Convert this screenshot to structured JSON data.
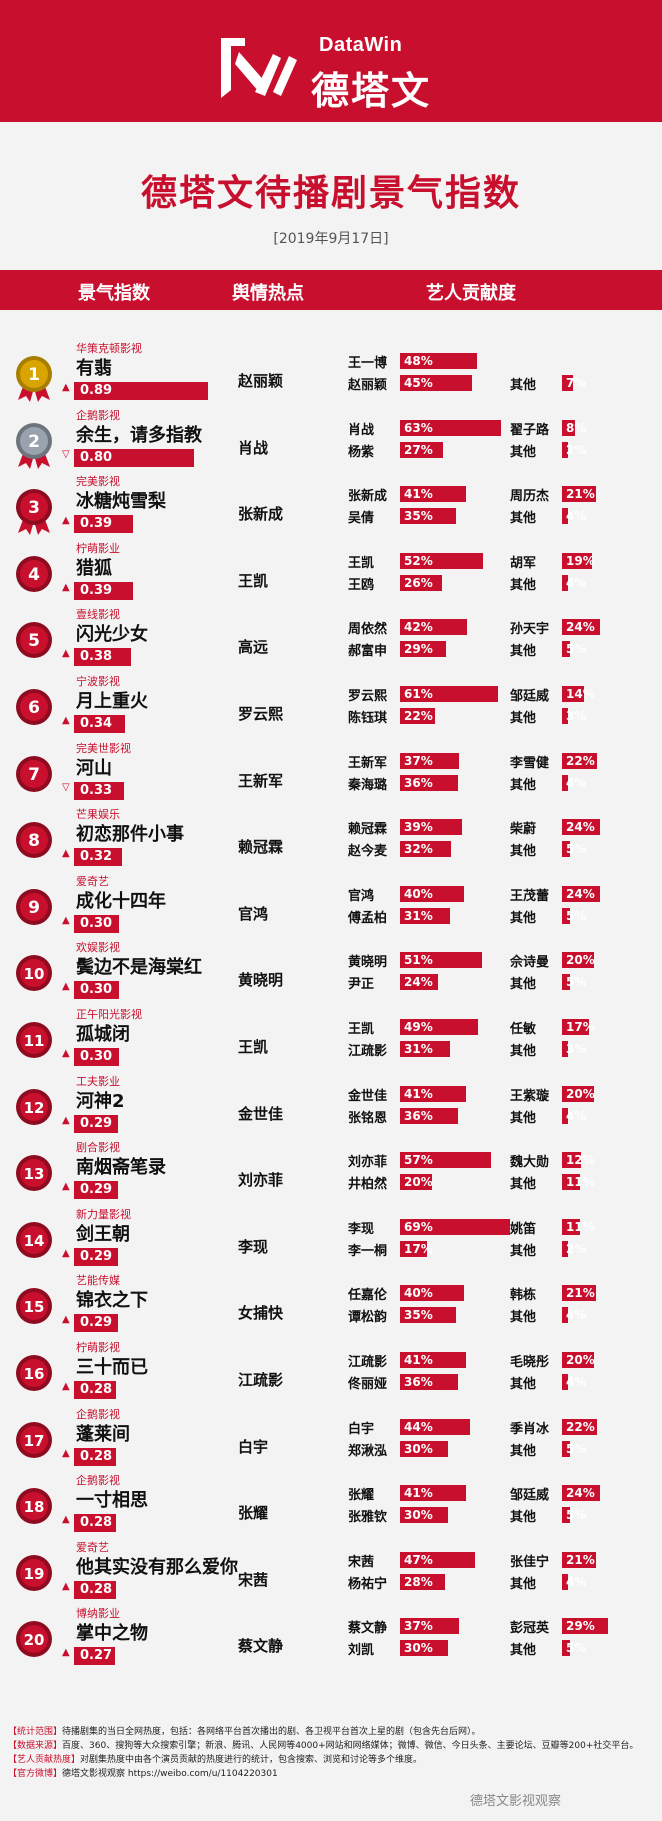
{
  "brand": {
    "en": "DataWin",
    "cn": "德塔文"
  },
  "title": "德塔文待播剧景气指数",
  "date": "[2019年9月17日]",
  "columns": [
    "景气指数",
    "舆情热点",
    "艺人贡献度"
  ],
  "colors": {
    "accent": "#c8102e",
    "gold": "#d9a300",
    "silver": "#9aa2ad"
  },
  "chart_data": {
    "type": "table",
    "rows": [
      {
        "rank": "1",
        "company": "华策克顿影视",
        "show": "有翡",
        "score": "0.89",
        "trend": "up",
        "hot": "赵丽颖",
        "actors": [
          {
            "name": "王一博",
            "pct": "48%"
          },
          {
            "name": "赵丽颖",
            "pct": "45%"
          },
          {
            "name": "",
            "pct": ""
          },
          {
            "name": "其他",
            "pct": "7%"
          }
        ]
      },
      {
        "rank": "2",
        "company": "企鹅影视",
        "show": "余生，请多指教",
        "score": "0.80",
        "trend": "down",
        "hot": "肖战",
        "actors": [
          {
            "name": "肖战",
            "pct": "63%"
          },
          {
            "name": "杨紫",
            "pct": "27%"
          },
          {
            "name": "翟子路",
            "pct": "8%"
          },
          {
            "name": "其他",
            "pct": "2%"
          }
        ]
      },
      {
        "rank": "3",
        "company": "完美影视",
        "show": "冰糖炖雪梨",
        "score": "0.39",
        "trend": "up",
        "hot": "张新成",
        "actors": [
          {
            "name": "张新成",
            "pct": "41%"
          },
          {
            "name": "吴倩",
            "pct": "35%"
          },
          {
            "name": "周历杰",
            "pct": "21%"
          },
          {
            "name": "其他",
            "pct": "4%"
          }
        ]
      },
      {
        "rank": "4",
        "company": "柠萌影业",
        "show": "猎狐",
        "score": "0.39",
        "trend": "up",
        "hot": "王凯",
        "actors": [
          {
            "name": "王凯",
            "pct": "52%"
          },
          {
            "name": "王鸥",
            "pct": "26%"
          },
          {
            "name": "胡军",
            "pct": "19%"
          },
          {
            "name": "其他",
            "pct": "4%"
          }
        ]
      },
      {
        "rank": "5",
        "company": "壹线影视",
        "show": "闪光少女",
        "score": "0.38",
        "trend": "up",
        "hot": "高远",
        "actors": [
          {
            "name": "周依然",
            "pct": "42%"
          },
          {
            "name": "郝富申",
            "pct": "29%"
          },
          {
            "name": "孙天宇",
            "pct": "24%"
          },
          {
            "name": "其他",
            "pct": "5%"
          }
        ]
      },
      {
        "rank": "6",
        "company": "宁波影视",
        "show": "月上重火",
        "score": "0.34",
        "trend": "up",
        "hot": "罗云熙",
        "actors": [
          {
            "name": "罗云熙",
            "pct": "61%"
          },
          {
            "name": "陈钰琪",
            "pct": "22%"
          },
          {
            "name": "邹廷威",
            "pct": "14%"
          },
          {
            "name": "其他",
            "pct": "3%"
          }
        ]
      },
      {
        "rank": "7",
        "company": "完美世影视",
        "show": "河山",
        "score": "0.33",
        "trend": "down",
        "hot": "王新军",
        "actors": [
          {
            "name": "王新军",
            "pct": "37%"
          },
          {
            "name": "秦海璐",
            "pct": "36%"
          },
          {
            "name": "李雪健",
            "pct": "22%"
          },
          {
            "name": "其他",
            "pct": "4%"
          }
        ]
      },
      {
        "rank": "8",
        "company": "芒果娱乐",
        "show": "初恋那件小事",
        "score": "0.32",
        "trend": "up",
        "hot": "赖冠霖",
        "actors": [
          {
            "name": "赖冠霖",
            "pct": "39%"
          },
          {
            "name": "赵今麦",
            "pct": "32%"
          },
          {
            "name": "柴蔚",
            "pct": "24%"
          },
          {
            "name": "其他",
            "pct": "5%"
          }
        ]
      },
      {
        "rank": "9",
        "company": "爱奇艺",
        "show": "成化十四年",
        "score": "0.30",
        "trend": "up",
        "hot": "官鸿",
        "actors": [
          {
            "name": "官鸿",
            "pct": "40%"
          },
          {
            "name": "傅孟柏",
            "pct": "31%"
          },
          {
            "name": "王茂蕾",
            "pct": "24%"
          },
          {
            "name": "其他",
            "pct": "5%"
          }
        ]
      },
      {
        "rank": "10",
        "company": "欢娱影视",
        "show": "鬓边不是海棠红",
        "score": "0.30",
        "trend": "up",
        "hot": "黄晓明",
        "actors": [
          {
            "name": "黄晓明",
            "pct": "51%"
          },
          {
            "name": "尹正",
            "pct": "24%"
          },
          {
            "name": "佘诗曼",
            "pct": "20%"
          },
          {
            "name": "其他",
            "pct": "5%"
          }
        ]
      },
      {
        "rank": "11",
        "company": "正午阳光影视",
        "show": "孤城闭",
        "score": "0.30",
        "trend": "up",
        "hot": "王凯",
        "actors": [
          {
            "name": "王凯",
            "pct": "49%"
          },
          {
            "name": "江疏影",
            "pct": "31%"
          },
          {
            "name": "任敏",
            "pct": "17%"
          },
          {
            "name": "其他",
            "pct": "3%"
          }
        ]
      },
      {
        "rank": "12",
        "company": "工夫影业",
        "show": "河神2",
        "score": "0.29",
        "trend": "up",
        "hot": "金世佳",
        "actors": [
          {
            "name": "金世佳",
            "pct": "41%"
          },
          {
            "name": "张铭恩",
            "pct": "36%"
          },
          {
            "name": "王紫璇",
            "pct": "20%"
          },
          {
            "name": "其他",
            "pct": "4%"
          }
        ]
      },
      {
        "rank": "13",
        "company": "剧合影视",
        "show": "南烟斋笔录",
        "score": "0.29",
        "trend": "up",
        "hot": "刘亦菲",
        "actors": [
          {
            "name": "刘亦菲",
            "pct": "57%"
          },
          {
            "name": "井柏然",
            "pct": "20%"
          },
          {
            "name": "魏大勋",
            "pct": "12%"
          },
          {
            "name": "其他",
            "pct": "11%"
          }
        ]
      },
      {
        "rank": "14",
        "company": "新力量影视",
        "show": "剑王朝",
        "score": "0.29",
        "trend": "up",
        "hot": "李现",
        "actors": [
          {
            "name": "李现",
            "pct": "69%"
          },
          {
            "name": "李一桐",
            "pct": "17%"
          },
          {
            "name": "姚笛",
            "pct": "11%"
          },
          {
            "name": "其他",
            "pct": "2%"
          }
        ]
      },
      {
        "rank": "15",
        "company": "艺能传媒",
        "show": "锦衣之下",
        "score": "0.29",
        "trend": "up",
        "hot": "女捕快",
        "actors": [
          {
            "name": "任嘉伦",
            "pct": "40%"
          },
          {
            "name": "谭松韵",
            "pct": "35%"
          },
          {
            "name": "韩栋",
            "pct": "21%"
          },
          {
            "name": "其他",
            "pct": "4%"
          }
        ]
      },
      {
        "rank": "16",
        "company": "柠萌影视",
        "show": "三十而已",
        "score": "0.28",
        "trend": "up",
        "hot": "江疏影",
        "actors": [
          {
            "name": "江疏影",
            "pct": "41%"
          },
          {
            "name": "佟丽娅",
            "pct": "36%"
          },
          {
            "name": "毛晓彤",
            "pct": "20%"
          },
          {
            "name": "其他",
            "pct": "4%"
          }
        ]
      },
      {
        "rank": "17",
        "company": "企鹅影视",
        "show": "蓬莱间",
        "score": "0.28",
        "trend": "up",
        "hot": "白宇",
        "actors": [
          {
            "name": "白宇",
            "pct": "44%"
          },
          {
            "name": "郑湫泓",
            "pct": "30%"
          },
          {
            "name": "季肖冰",
            "pct": "22%"
          },
          {
            "name": "其他",
            "pct": "5%"
          }
        ]
      },
      {
        "rank": "18",
        "company": "企鹅影视",
        "show": "一寸相思",
        "score": "0.28",
        "trend": "up",
        "hot": "张耀",
        "actors": [
          {
            "name": "张耀",
            "pct": "41%"
          },
          {
            "name": "张雅钦",
            "pct": "30%"
          },
          {
            "name": "邹廷威",
            "pct": "24%"
          },
          {
            "name": "其他",
            "pct": "5%"
          }
        ]
      },
      {
        "rank": "19",
        "company": "爱奇艺",
        "show": "他其实没有那么爱你",
        "score": "0.28",
        "trend": "up",
        "hot": "宋茜",
        "actors": [
          {
            "name": "宋茜",
            "pct": "47%"
          },
          {
            "name": "杨祐宁",
            "pct": "28%"
          },
          {
            "name": "张佳宁",
            "pct": "21%"
          },
          {
            "name": "其他",
            "pct": "4%"
          }
        ]
      },
      {
        "rank": "20",
        "company": "博纳影业",
        "show": "掌中之物",
        "score": "0.27",
        "trend": "up",
        "hot": "蔡文静",
        "actors": [
          {
            "name": "蔡文静",
            "pct": "37%"
          },
          {
            "name": "刘凯",
            "pct": "30%"
          },
          {
            "name": "彭冠英",
            "pct": "29%"
          },
          {
            "name": "其他",
            "pct": "5%"
          }
        ]
      }
    ]
  },
  "footer": {
    "l1k": "【统计范围】",
    "l1": "待播剧集的当日全网热度，包括：各网络平台首次播出的剧、各卫视平台首次上星的剧（包含先台后网）。",
    "l2k": "【数据来源】",
    "l2": "百度、360、搜狗等大众搜索引擎；新浪、腾讯、人民网等4000+网站和网络媒体；微博、微信、今日头条、主要论坛、豆瓣等200+社交平台。",
    "l3k": "【艺人贡献热度】",
    "l3": "对剧集热度中由各个演员贡献的热度进行的统计，包含搜索、浏览和讨论等多个维度。",
    "l4k": "【官方微博】",
    "l4": "德塔文影视观察 https://weibo.com/u/1104220301"
  },
  "watermark": "德塔文影视观察"
}
